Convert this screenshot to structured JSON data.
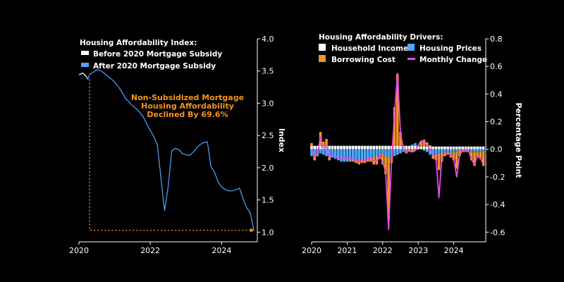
{
  "chart_data": [
    {
      "type": "line",
      "title": "Housing Affordability Index:",
      "ylabel": "Index",
      "xlabel": "",
      "xlim": [
        2020.0,
        2025.0
      ],
      "ylim": [
        0.85,
        4.0
      ],
      "y_ticks": [
        1.0,
        1.5,
        2.0,
        2.5,
        3.0,
        3.5,
        4.0
      ],
      "y_tick_labels": [
        "1.0",
        "1.5",
        "2.0",
        "2.5",
        "3.0",
        "3.5",
        "4.0"
      ],
      "x_ticks": [
        2020,
        2022,
        2024
      ],
      "x_tick_labels": [
        "2020",
        "2022",
        "2024"
      ],
      "grid": false,
      "legend_position": "top-left",
      "series": [
        {
          "name": "Before 2020 Mortgage Subsidy",
          "color": "#ffffff",
          "x": [
            2020.0,
            2020.1,
            2020.2,
            2020.25
          ],
          "values": [
            3.44,
            3.47,
            3.42,
            3.37
          ]
        },
        {
          "name": "After 2020 Mortgage Subsidy",
          "color": "#4ea7ff",
          "x": [
            2020.25,
            2020.3,
            2020.4,
            2020.5,
            2020.6,
            2020.7,
            2020.8,
            2020.9,
            2021.0,
            2021.1,
            2021.2,
            2021.3,
            2021.4,
            2021.5,
            2021.6,
            2021.7,
            2021.8,
            2021.9,
            2022.0,
            2022.1,
            2022.2,
            2022.3,
            2022.4,
            2022.5,
            2022.6,
            2022.7,
            2022.8,
            2022.9,
            2023.0,
            2023.1,
            2023.2,
            2023.3,
            2023.4,
            2023.5,
            2023.6,
            2023.7,
            2023.8,
            2023.9,
            2024.0,
            2024.1,
            2024.2,
            2024.3,
            2024.4,
            2024.5,
            2024.6,
            2024.7,
            2024.8,
            2024.9
          ],
          "values": [
            3.37,
            3.45,
            3.48,
            3.52,
            3.51,
            3.47,
            3.42,
            3.38,
            3.33,
            3.26,
            3.18,
            3.08,
            3.02,
            2.96,
            2.92,
            2.86,
            2.79,
            2.68,
            2.58,
            2.48,
            2.35,
            1.83,
            1.33,
            1.7,
            2.26,
            2.3,
            2.28,
            2.22,
            2.2,
            2.19,
            2.24,
            2.31,
            2.36,
            2.39,
            2.4,
            2.02,
            1.93,
            1.78,
            1.7,
            1.66,
            1.64,
            1.64,
            1.66,
            1.68,
            1.52,
            1.38,
            1.3,
            1.04
          ]
        }
      ],
      "annotation": {
        "lines": [
          "Non-Subsidized Mortgage",
          "Housing Affordability",
          "Declined By 69.6%"
        ],
        "color": "#f7931e",
        "from": [
          2020.3,
          3.37
        ],
        "corner": [
          2020.3,
          1.03
        ],
        "to": [
          2024.92,
          1.03
        ]
      }
    },
    {
      "type": "bar",
      "stacked": true,
      "title": "Housing Affordability Drivers:",
      "ylabel": "Percentage Point",
      "xlabel": "",
      "xlim": [
        2020.0,
        2024.9
      ],
      "ylim": [
        -0.67,
        0.8
      ],
      "y_ticks": [
        -0.6,
        -0.4,
        -0.2,
        0.0,
        0.2,
        0.4,
        0.6,
        0.8
      ],
      "y_tick_labels": [
        "-0.6",
        "-0.4",
        "-0.2",
        "0.0",
        "0.2",
        "0.4",
        "0.6",
        "0.8"
      ],
      "x_ticks": [
        2020,
        2021,
        2022,
        2023,
        2024
      ],
      "x_tick_labels": [
        "2020",
        "2021",
        "2022",
        "2023",
        "2024"
      ],
      "grid": false,
      "legend_position": "top",
      "start": 2020.0,
      "step": 0.0833,
      "series": [
        {
          "name": "Household Income",
          "color": "#ffffff",
          "values": [
            0.025,
            0.025,
            0.025,
            0.025,
            0.025,
            0.025,
            0.025,
            0.025,
            0.025,
            0.025,
            0.025,
            0.025,
            0.025,
            0.025,
            0.025,
            0.025,
            0.025,
            0.025,
            0.025,
            0.025,
            0.025,
            0.025,
            0.025,
            0.025,
            0.025,
            0.025,
            0.025,
            0.025,
            0.025,
            0.025,
            0.025,
            0.025,
            0.025,
            0.025,
            0.025,
            0.025,
            0.02,
            0.02,
            0.02,
            0.02,
            0.02,
            0.02,
            0.02,
            0.02,
            0.02,
            0.02,
            0.02,
            0.02,
            0.02,
            0.02,
            0.02,
            0.02,
            0.02,
            0.02,
            0.02,
            0.02,
            0.02,
            0.02,
            0.02
          ]
        },
        {
          "name": "Housing Prices",
          "color": "#4ea7ff",
          "values": [
            -0.05,
            -0.05,
            -0.04,
            -0.03,
            -0.04,
            -0.05,
            -0.06,
            -0.06,
            -0.07,
            -0.08,
            -0.09,
            -0.09,
            -0.09,
            -0.08,
            -0.08,
            -0.08,
            -0.08,
            -0.08,
            -0.07,
            -0.07,
            -0.06,
            -0.06,
            -0.05,
            -0.04,
            -0.03,
            -0.05,
            -0.06,
            -0.06,
            -0.05,
            -0.04,
            -0.03,
            -0.02,
            -0.01,
            0.0,
            0.01,
            0.02,
            0.01,
            0.0,
            -0.01,
            -0.02,
            -0.04,
            -0.05,
            -0.04,
            -0.03,
            -0.03,
            -0.02,
            -0.02,
            -0.03,
            -0.02,
            -0.02,
            -0.01,
            0.0,
            -0.01,
            -0.01,
            -0.02,
            -0.02,
            -0.02,
            -0.02,
            -0.02
          ]
        },
        {
          "name": "Borrowing Cost",
          "color": "#f7931e",
          "values": [
            0.02,
            -0.03,
            -0.01,
            0.1,
            0.03,
            0.05,
            -0.02,
            0.0,
            0.0,
            0.0,
            0.0,
            0.0,
            0.0,
            -0.01,
            -0.01,
            -0.02,
            -0.03,
            -0.02,
            -0.03,
            -0.02,
            -0.03,
            -0.05,
            -0.06,
            -0.03,
            -0.08,
            -0.13,
            -0.45,
            -0.04,
            0.28,
            0.52,
            0.1,
            0.0,
            -0.02,
            -0.02,
            -0.02,
            -0.01,
            0.0,
            0.04,
            0.05,
            0.03,
            0.01,
            -0.02,
            -0.04,
            -0.12,
            -0.06,
            -0.03,
            -0.02,
            -0.03,
            -0.06,
            -0.12,
            -0.04,
            -0.02,
            -0.01,
            -0.01,
            -0.06,
            -0.1,
            -0.04,
            -0.05,
            -0.1
          ]
        }
      ],
      "line_series": {
        "name": "Monthly Change",
        "color": "#e84ce6",
        "values": [
          0.0,
          -0.05,
          -0.03,
          0.09,
          0.01,
          0.02,
          -0.06,
          -0.04,
          -0.05,
          -0.06,
          -0.07,
          -0.07,
          -0.07,
          -0.07,
          -0.07,
          -0.08,
          -0.09,
          -0.08,
          -0.08,
          -0.07,
          -0.06,
          -0.08,
          -0.09,
          -0.05,
          -0.09,
          -0.16,
          -0.58,
          -0.08,
          0.25,
          0.55,
          0.12,
          0.0,
          -0.01,
          -0.01,
          -0.02,
          -0.01,
          0.03,
          0.06,
          0.06,
          0.03,
          0.0,
          -0.04,
          -0.06,
          -0.35,
          -0.05,
          -0.03,
          -0.03,
          -0.04,
          -0.07,
          -0.2,
          -0.04,
          -0.01,
          0.0,
          -0.01,
          -0.07,
          -0.11,
          -0.05,
          -0.06,
          -0.11
        ]
      }
    }
  ]
}
